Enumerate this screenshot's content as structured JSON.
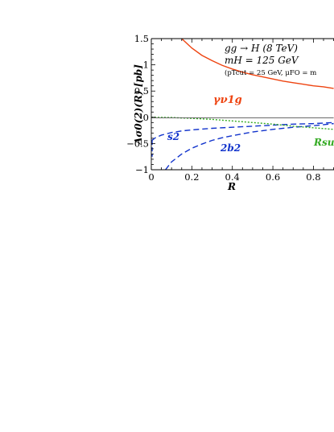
{
  "chart_data": {
    "type": "line",
    "title": "",
    "xlabel": "R",
    "ylabel": "Δσ0(2)(R) [pb]",
    "xlim": [
      0,
      0.9
    ],
    "ylim": [
      -1,
      1.5
    ],
    "xticks": [
      "0",
      "0.2",
      "0.4",
      "0.6",
      "0.8"
    ],
    "yticks": [
      "−1",
      "−0.5",
      "0",
      "0.5",
      "1",
      "1.5"
    ],
    "grid": false,
    "annotations": {
      "process": "gg → H (8 TeV)",
      "mass": "mH = 125 GeV",
      "cuts": "(pTcut = 25 GeV, μFO = m"
    },
    "series": [
      {
        "label": "γν1g",
        "color": "#ee4411",
        "dash": "solid",
        "x": [
          0.15,
          0.2,
          0.25,
          0.3,
          0.35,
          0.4,
          0.45,
          0.5,
          0.55,
          0.6,
          0.65,
          0.7,
          0.75,
          0.8,
          0.85,
          0.9
        ],
        "y": [
          1.5,
          1.32,
          1.18,
          1.08,
          0.99,
          0.92,
          0.86,
          0.81,
          0.77,
          0.73,
          0.69,
          0.66,
          0.63,
          0.6,
          0.58,
          0.55
        ]
      },
      {
        "label": "s2",
        "color": "#1133cc",
        "dash": "dashed",
        "x": [
          0.0,
          0.02,
          0.05,
          0.1,
          0.15,
          0.2,
          0.3,
          0.4,
          0.5,
          0.6,
          0.7,
          0.8,
          0.9
        ],
        "y": [
          -0.45,
          -0.39,
          -0.34,
          -0.29,
          -0.26,
          -0.24,
          -0.21,
          -0.19,
          -0.17,
          -0.15,
          -0.13,
          -0.12,
          -0.1
        ]
      },
      {
        "label": "2b2",
        "color": "#1133cc",
        "dash": "dashed",
        "x": [
          0.07,
          0.1,
          0.15,
          0.2,
          0.25,
          0.3,
          0.35,
          0.4,
          0.5,
          0.6,
          0.7,
          0.8,
          0.9
        ],
        "y": [
          -1.0,
          -0.85,
          -0.7,
          -0.59,
          -0.51,
          -0.44,
          -0.39,
          -0.35,
          -0.28,
          -0.23,
          -0.19,
          -0.16,
          -0.12
        ]
      },
      {
        "label": "Rsub",
        "color": "#33aa22",
        "dash": "dotted",
        "x": [
          0.0,
          0.1,
          0.2,
          0.3,
          0.4,
          0.5,
          0.6,
          0.7,
          0.8,
          0.9
        ],
        "y": [
          0.0,
          -0.005,
          -0.02,
          -0.04,
          -0.07,
          -0.1,
          -0.13,
          -0.17,
          -0.2,
          -0.23
        ]
      },
      {
        "label": "",
        "color": "#555555",
        "dash": "solid",
        "x": [
          0.0,
          0.9
        ],
        "y": [
          -0.01,
          -0.01
        ]
      }
    ]
  }
}
